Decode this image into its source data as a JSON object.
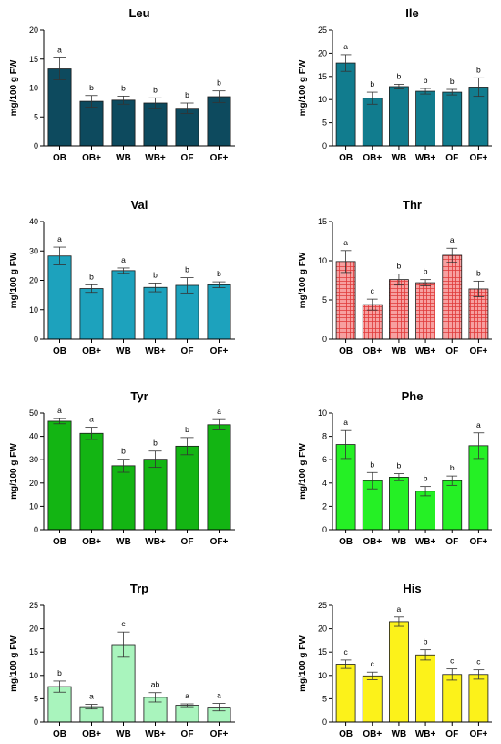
{
  "chart_data": [
    {
      "type": "bar",
      "title": "Leu",
      "ylabel": "mg/100 g FW",
      "ylim": [
        0,
        20
      ],
      "yticks": [
        0,
        5,
        10,
        15,
        20
      ],
      "categories": [
        "OB",
        "OB+",
        "WB",
        "WB+",
        "OF",
        "OF+"
      ],
      "values": [
        13.3,
        7.7,
        7.9,
        7.4,
        6.5,
        8.5
      ],
      "errors": [
        1.9,
        1.0,
        0.7,
        0.9,
        0.9,
        1.0
      ],
      "letters": [
        "a",
        "b",
        "b",
        "b",
        "b",
        "b"
      ],
      "color": "#0d4a5e",
      "pattern": "solid"
    },
    {
      "type": "bar",
      "title": "Ile",
      "ylabel": "mg/100 g FW",
      "ylim": [
        0,
        25
      ],
      "yticks": [
        0,
        5,
        10,
        15,
        20,
        25
      ],
      "categories": [
        "OB",
        "OB+",
        "WB",
        "WB+",
        "OF",
        "OF+"
      ],
      "values": [
        17.9,
        10.3,
        12.8,
        11.8,
        11.6,
        12.7
      ],
      "errors": [
        1.8,
        1.3,
        0.5,
        0.6,
        0.6,
        2.0
      ],
      "letters": [
        "a",
        "b",
        "b",
        "b",
        "b",
        "b"
      ],
      "color": "#117c8e",
      "pattern": "solid"
    },
    {
      "type": "bar",
      "title": "Val",
      "ylabel": "mg/100 g FW",
      "ylim": [
        0,
        40
      ],
      "yticks": [
        0,
        10,
        20,
        30,
        40
      ],
      "categories": [
        "OB",
        "OB+",
        "WB",
        "WB+",
        "OF",
        "OF+"
      ],
      "values": [
        28.3,
        17.2,
        23.3,
        17.6,
        18.3,
        18.5
      ],
      "errors": [
        3.0,
        1.3,
        0.9,
        1.5,
        2.6,
        1.0
      ],
      "letters": [
        "a",
        "b",
        "a",
        "b",
        "b",
        "b"
      ],
      "color": "#1da2bd",
      "pattern": "solid"
    },
    {
      "type": "bar",
      "title": "Thr",
      "ylabel": "mg/100 g FW",
      "ylim": [
        0,
        15
      ],
      "yticks": [
        0,
        5,
        10,
        15
      ],
      "categories": [
        "OB",
        "OB+",
        "WB",
        "WB+",
        "OF",
        "OF+"
      ],
      "values": [
        9.9,
        4.4,
        7.6,
        7.2,
        10.7,
        6.4
      ],
      "errors": [
        1.4,
        0.7,
        0.7,
        0.4,
        0.9,
        1.0
      ],
      "letters": [
        "a",
        "c",
        "b",
        "b",
        "a",
        "b"
      ],
      "color": "#f27a7a",
      "pattern": "grid"
    },
    {
      "type": "bar",
      "title": "Tyr",
      "ylabel": "mg/100 g FW",
      "ylim": [
        0,
        50
      ],
      "yticks": [
        0,
        10,
        20,
        30,
        40,
        50
      ],
      "categories": [
        "OB",
        "OB+",
        "WB",
        "WB+",
        "OF",
        "OF+"
      ],
      "values": [
        46.5,
        41.3,
        27.4,
        30.2,
        35.8,
        45.0
      ],
      "errors": [
        1.1,
        2.6,
        2.8,
        3.5,
        3.7,
        2.2
      ],
      "letters": [
        "a",
        "a",
        "b",
        "b",
        "b",
        "a"
      ],
      "color": "#13b513",
      "pattern": "solid"
    },
    {
      "type": "bar",
      "title": "Phe",
      "ylabel": "mg/100 g FW",
      "ylim": [
        0,
        10
      ],
      "yticks": [
        0,
        2,
        4,
        6,
        8,
        10
      ],
      "categories": [
        "OB",
        "OB+",
        "WB",
        "WB+",
        "OF",
        "OF+"
      ],
      "values": [
        7.3,
        4.2,
        4.5,
        3.3,
        4.2,
        7.2
      ],
      "errors": [
        1.2,
        0.7,
        0.3,
        0.4,
        0.4,
        1.1
      ],
      "letters": [
        "a",
        "b",
        "b",
        "b",
        "b",
        "a"
      ],
      "color": "#25f025",
      "pattern": "solid"
    },
    {
      "type": "bar",
      "title": "Trp",
      "ylabel": "mg/100 g FW",
      "ylim": [
        0,
        25
      ],
      "yticks": [
        0,
        5,
        10,
        15,
        20,
        25
      ],
      "categories": [
        "OB",
        "OB+",
        "WB",
        "WB+",
        "OF",
        "OF+"
      ],
      "values": [
        7.6,
        3.3,
        16.6,
        5.3,
        3.6,
        3.2
      ],
      "errors": [
        1.2,
        0.5,
        2.7,
        1.0,
        0.3,
        0.8
      ],
      "letters": [
        "b",
        "a",
        "c",
        "ab",
        "a",
        "a"
      ],
      "color": "#a9f4bd",
      "pattern": "solid"
    },
    {
      "type": "bar",
      "title": "His",
      "ylabel": "mg/100 g FW",
      "ylim": [
        0,
        25
      ],
      "yticks": [
        0,
        5,
        10,
        15,
        20,
        25
      ],
      "categories": [
        "OB",
        "OB+",
        "WB",
        "WB+",
        "OF",
        "OF+"
      ],
      "values": [
        12.4,
        9.9,
        21.5,
        14.4,
        10.2,
        10.2
      ],
      "errors": [
        0.9,
        0.8,
        1.0,
        1.1,
        1.2,
        1.0
      ],
      "letters": [
        "c",
        "c",
        "a",
        "b",
        "c",
        "c"
      ],
      "color": "#fcf21a",
      "pattern": "solid"
    }
  ]
}
